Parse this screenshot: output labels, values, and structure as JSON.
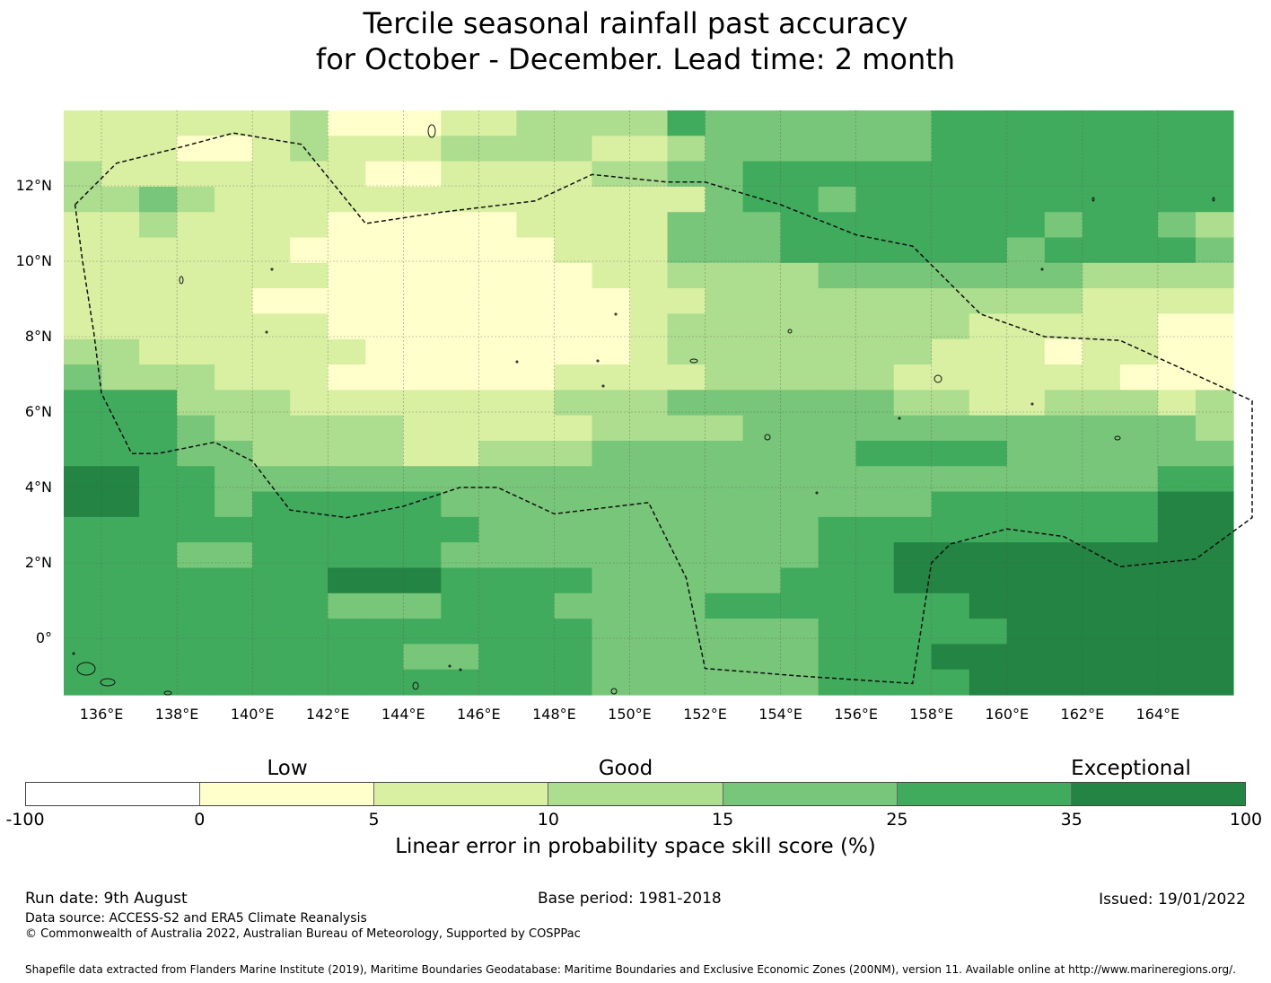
{
  "title": {
    "line1": "Tercile seasonal rainfall past accuracy",
    "line2": "for October - December. Lead time: 2 month"
  },
  "map": {
    "lat_labels": [
      "12°N",
      "10°N",
      "8°N",
      "6°N",
      "4°N",
      "2°N",
      "0°"
    ],
    "lon_labels": [
      "136°E",
      "138°E",
      "140°E",
      "142°E",
      "144°E",
      "146°E",
      "148°E",
      "150°E",
      "152°E",
      "154°E",
      "156°E",
      "158°E",
      "160°E",
      "162°E",
      "164°E"
    ],
    "lon_range": [
      135.0,
      166.0
    ],
    "lat_range": [
      -1.5,
      14.0
    ],
    "cell_size_deg": 0.83,
    "grid_rows_north_to_south": [
      "2222223111223333544444455555555",
      "2221123222333322344444455555555",
      "3222222211222233445555555555555",
      "3343222222222222245545555555555",
      "2232222111112222444555555545543",
      "2222221111111222444555555455554",
      "2222222111111122333344444443333",
      "2222211111111112233333333332222",
      "2222222111111112333333332222211",
      "3322222211111112333333322212211",
      "4333222111111222233333222222111",
      "5553332222222333444444332233323",
      "5554333332222233334444444444443",
      "5554433332233344444445555444444",
      "6655444444444444444444444444455",
      "6655455555444444444444455555566",
      "5555555555544444444455555555566",
      "5554455555444444444455666666666",
      "5555555666555544444555666666666",
      "5555555444555444455555556666666",
      "5555555555555544444455555666666",
      "5555555554455544444455566666666",
      "5555555555555544444455556666666"
    ],
    "boundary_lonlat": [
      [
        135.3,
        11.5
      ],
      [
        136.4,
        12.6
      ],
      [
        138.0,
        13.0
      ],
      [
        139.5,
        13.4
      ],
      [
        141.3,
        13.1
      ],
      [
        143.0,
        11.0
      ],
      [
        145.0,
        11.3
      ],
      [
        147.5,
        11.6
      ],
      [
        149.0,
        12.3
      ],
      [
        151.0,
        12.1
      ],
      [
        152.0,
        12.1
      ],
      [
        154.0,
        11.5
      ],
      [
        156.0,
        10.7
      ],
      [
        157.5,
        10.4
      ],
      [
        159.3,
        8.6
      ],
      [
        161.0,
        8.0
      ],
      [
        163.0,
        7.9
      ],
      [
        166.5,
        6.3
      ],
      [
        166.5,
        3.2
      ],
      [
        165.0,
        2.1
      ],
      [
        163.0,
        1.9
      ],
      [
        161.5,
        2.7
      ],
      [
        160.0,
        2.9
      ],
      [
        158.5,
        2.5
      ],
      [
        158.0,
        2.0
      ],
      [
        157.5,
        -1.2
      ],
      [
        154.5,
        -1.0
      ],
      [
        152.0,
        -0.8
      ],
      [
        151.5,
        1.6
      ],
      [
        151.0,
        2.6
      ],
      [
        150.5,
        3.6
      ],
      [
        148.0,
        3.3
      ],
      [
        146.5,
        4.0
      ],
      [
        145.5,
        4.0
      ],
      [
        144.0,
        3.5
      ],
      [
        142.5,
        3.2
      ],
      [
        141.0,
        3.4
      ],
      [
        140.0,
        4.7
      ],
      [
        139.0,
        5.2
      ],
      [
        137.5,
        4.9
      ],
      [
        136.8,
        4.9
      ],
      [
        136.0,
        6.5
      ],
      [
        135.8,
        8.1
      ],
      [
        135.5,
        10.0
      ],
      [
        135.3,
        11.5
      ]
    ]
  },
  "colorbar": {
    "ticks": [
      "-100",
      "0",
      "5",
      "10",
      "15",
      "25",
      "35",
      "100"
    ],
    "colors": [
      "#ffffff",
      "#ffffcc",
      "#d9f0a3",
      "#addd8e",
      "#78c679",
      "#41ab5d",
      "#238443"
    ],
    "categories": [
      "Low",
      "Good",
      "Exceptional"
    ],
    "label": "Linear error in probability space skill score (%)"
  },
  "footer": {
    "run_date": "Run date: 9th August",
    "base_period": "Base period: 1981-2018",
    "issued": "Issued: 19/01/2022",
    "data_source": "Data source: ACCESS-S2 and ERA5 Climate Reanalysis",
    "copyright": "© Commonwealth of Australia 2022, Australian Bureau of Meteorology, Supported by COSPPac",
    "shapefile": "Shapefile data extracted from Flanders Marine Institute (2019), Maritime Boundaries Geodatabase: Maritime Boundaries and Exclusive Economic Zones (200NM), version 11. Available online at http://www.marineregions.org/."
  }
}
